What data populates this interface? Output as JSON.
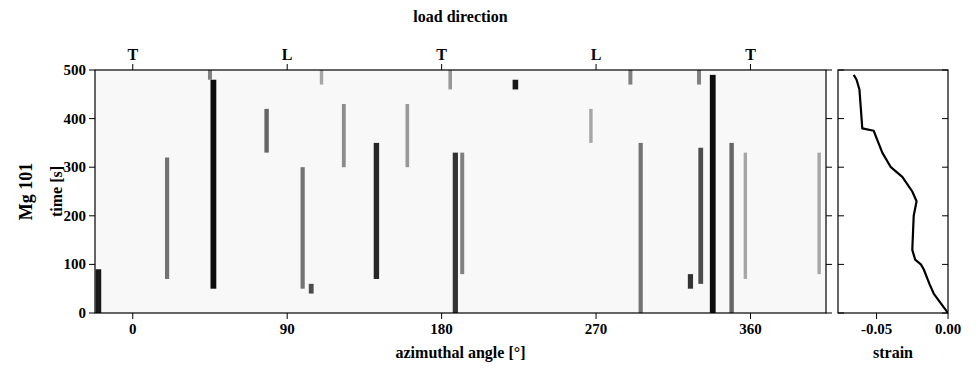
{
  "chart_data": [
    {
      "type": "heatmap",
      "panel_label": "Mg 101",
      "x2label": "load direction",
      "x2ticks": [
        {
          "value": 0,
          "label": "T"
        },
        {
          "value": 90,
          "label": "L"
        },
        {
          "value": 180,
          "label": "T"
        },
        {
          "value": 270,
          "label": "L"
        },
        {
          "value": 360,
          "label": "T"
        }
      ],
      "xlabel": "azimuthal angle [°]",
      "ylabel": "time [s]",
      "xlim": [
        -22,
        404
      ],
      "ylim": [
        0,
        500
      ],
      "xticks": [
        0,
        90,
        180,
        270,
        360
      ],
      "yticks": [
        0,
        100,
        200,
        300,
        400,
        500
      ],
      "streaks": [
        {
          "angle": -20,
          "t0": 0,
          "t1": 90,
          "intensity": 0.9
        },
        {
          "angle": 20,
          "t0": 70,
          "t1": 320,
          "intensity": 0.55
        },
        {
          "angle": 47,
          "t0": 50,
          "t1": 480,
          "intensity": 0.95
        },
        {
          "angle": 78,
          "t0": 330,
          "t1": 420,
          "intensity": 0.6
        },
        {
          "angle": 99,
          "t0": 50,
          "t1": 300,
          "intensity": 0.55
        },
        {
          "angle": 104,
          "t0": 40,
          "t1": 60,
          "intensity": 0.7
        },
        {
          "angle": 123,
          "t0": 300,
          "t1": 430,
          "intensity": 0.45
        },
        {
          "angle": 142,
          "t0": 70,
          "t1": 350,
          "intensity": 0.85
        },
        {
          "angle": 160,
          "t0": 300,
          "t1": 430,
          "intensity": 0.4
        },
        {
          "angle": 188,
          "t0": 0,
          "t1": 330,
          "intensity": 0.8
        },
        {
          "angle": 192,
          "t0": 80,
          "t1": 330,
          "intensity": 0.5
        },
        {
          "angle": 223,
          "t0": 460,
          "t1": 480,
          "intensity": 0.9
        },
        {
          "angle": 267,
          "t0": 350,
          "t1": 420,
          "intensity": 0.35
        },
        {
          "angle": 296,
          "t0": 0,
          "t1": 350,
          "intensity": 0.55
        },
        {
          "angle": 325,
          "t0": 50,
          "t1": 80,
          "intensity": 0.8
        },
        {
          "angle": 331,
          "t0": 60,
          "t1": 340,
          "intensity": 0.7
        },
        {
          "angle": 338,
          "t0": 0,
          "t1": 490,
          "intensity": 0.95
        },
        {
          "angle": 349,
          "t0": 0,
          "t1": 350,
          "intensity": 0.6
        },
        {
          "angle": 357,
          "t0": 70,
          "t1": 330,
          "intensity": 0.35
        },
        {
          "angle": 400,
          "t0": 80,
          "t1": 330,
          "intensity": 0.35
        },
        {
          "angle": 45,
          "t0": 480,
          "t1": 500,
          "intensity": 0.5
        },
        {
          "angle": 110,
          "t0": 470,
          "t1": 500,
          "intensity": 0.35
        },
        {
          "angle": 185,
          "t0": 460,
          "t1": 500,
          "intensity": 0.4
        },
        {
          "angle": 290,
          "t0": 470,
          "t1": 500,
          "intensity": 0.5
        },
        {
          "angle": 330,
          "t0": 470,
          "t1": 500,
          "intensity": 0.5
        }
      ]
    },
    {
      "type": "line",
      "xlabel": "strain",
      "xlim": [
        -0.077,
        0
      ],
      "ylim": [
        0,
        500
      ],
      "xticks": [
        -0.05,
        {
          "value": 0,
          "label": "0.00"
        }
      ],
      "yticks": [
        0,
        100,
        200,
        300,
        400,
        500
      ],
      "tick_labels": "x",
      "color": "#000000",
      "x": [
        0,
        -0.005,
        -0.01,
        -0.013,
        -0.017,
        -0.019,
        -0.023,
        -0.025,
        -0.024,
        -0.022,
        -0.025,
        -0.032,
        -0.04,
        -0.046,
        -0.05,
        -0.052,
        -0.06,
        -0.062,
        -0.064,
        -0.066
      ],
      "values": [
        0,
        20,
        40,
        60,
        90,
        100,
        110,
        130,
        200,
        230,
        250,
        280,
        300,
        330,
        360,
        375,
        380,
        460,
        480,
        490
      ]
    }
  ]
}
